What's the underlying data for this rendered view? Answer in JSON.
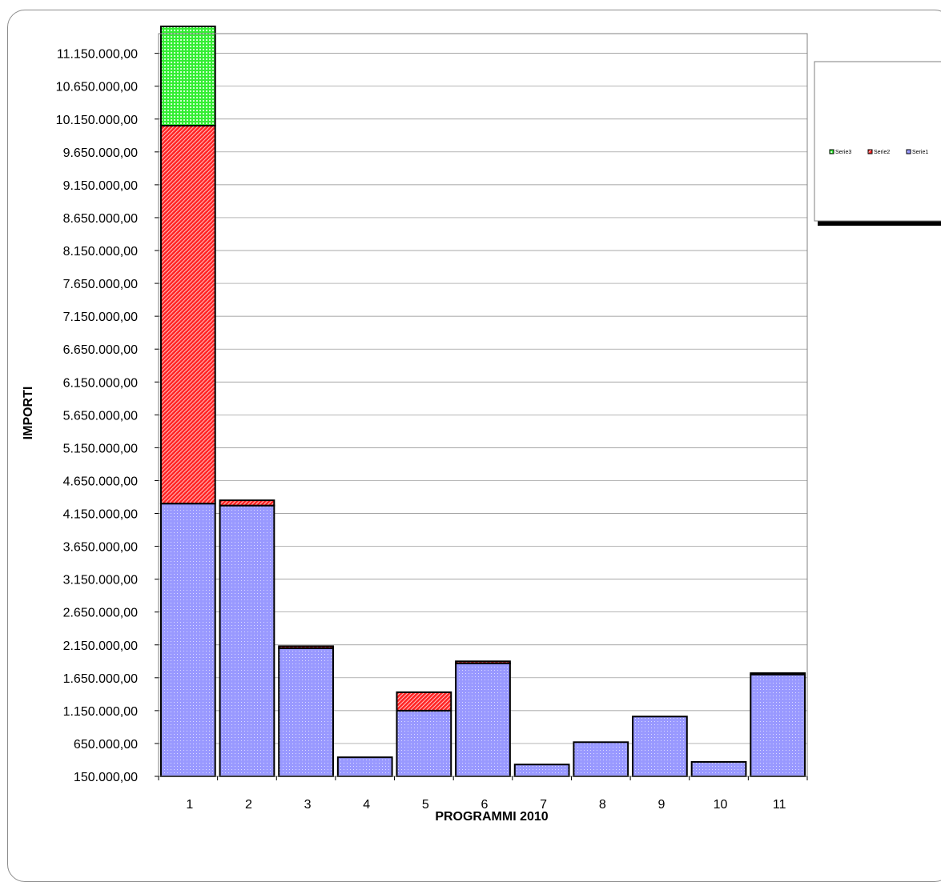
{
  "chart_data": {
    "type": "bar",
    "stacked": true,
    "title": "",
    "xlabel": "PROGRAMMI 2010",
    "ylabel": "IMPORTI",
    "categories": [
      "1",
      "2",
      "3",
      "4",
      "5",
      "6",
      "7",
      "8",
      "9",
      "10",
      "11"
    ],
    "ylim": [
      150000,
      11450000
    ],
    "yticks": [
      150000,
      650000,
      1150000,
      1650000,
      2150000,
      2650000,
      3150000,
      3650000,
      4150000,
      4650000,
      5150000,
      5650000,
      6150000,
      6650000,
      7150000,
      7650000,
      8150000,
      8650000,
      9150000,
      9650000,
      10150000,
      10650000,
      11150000
    ],
    "ytick_labels": [
      "150.000,00",
      "650.000,00",
      "1.150.000,00",
      "1.650.000,00",
      "2.150.000,00",
      "2.650.000,00",
      "3.150.000,00",
      "3.650.000,00",
      "4.150.000,00",
      "4.650.000,00",
      "5.150.000,00",
      "5.650.000,00",
      "6.150.000,00",
      "6.650.000,00",
      "7.150.000,00",
      "7.650.000,00",
      "8.150.000,00",
      "8.650.000,00",
      "9.150.000,00",
      "9.650.000,00",
      "10.150.000,00",
      "10.650.000,00",
      "11.150.000,00"
    ],
    "grid": true,
    "legend_position": "right",
    "series": [
      {
        "name": "Serie1",
        "color": "#9999ff",
        "values": [
          4150000,
          4120000,
          1950000,
          290000,
          1000000,
          1720000,
          180000,
          520000,
          910000,
          220000,
          1550000
        ]
      },
      {
        "name": "Serie2",
        "color": "#ff2020",
        "values": [
          5750000,
          80000,
          30000,
          0,
          280000,
          30000,
          0,
          0,
          0,
          0,
          20000
        ]
      },
      {
        "name": "Serie3",
        "color": "#33ee33",
        "values": [
          1510000,
          0,
          0,
          0,
          0,
          0,
          0,
          0,
          0,
          0,
          0
        ]
      }
    ]
  }
}
